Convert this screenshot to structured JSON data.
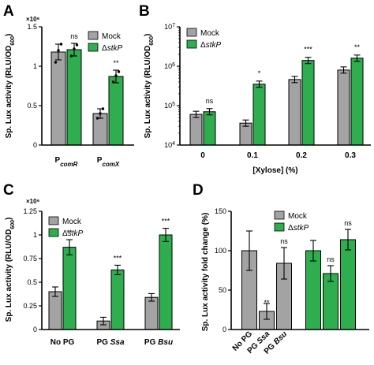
{
  "colors": {
    "mock": "#a3a3a3",
    "stkp": "#2fae4f"
  },
  "legend": {
    "mock": "Mock",
    "stkp": "ΔstkP",
    "stkp_tail": "stkP"
  },
  "chart_data": [
    {
      "panel": "A",
      "type": "bar",
      "ylabel": "Sp. Lux activity (RLU/OD600)",
      "y_multiplier": "×10⁶",
      "ylim": [
        0,
        1.5
      ],
      "yticks": [
        "0",
        "0.5",
        "1",
        "1.5"
      ],
      "categories": [
        {
          "main": "P",
          "sub": "comR"
        },
        {
          "main": "P",
          "sub": "comX"
        }
      ],
      "series": [
        {
          "name": "Mock",
          "values": [
            1.18,
            0.4
          ],
          "errors": [
            0.1,
            0.06
          ],
          "points": [
            [
              1.05,
              1.2,
              1.28
            ],
            [
              0.34,
              0.4,
              0.46
            ]
          ]
        },
        {
          "name": "ΔstkP",
          "values": [
            1.21,
            0.87
          ],
          "errors": [
            0.08,
            0.08
          ],
          "points": [
            [
              1.13,
              1.22,
              1.27
            ],
            [
              0.8,
              0.88,
              0.93
            ]
          ]
        }
      ],
      "significance": [
        "ns",
        "**"
      ],
      "legend_position": "top-right"
    },
    {
      "panel": "B",
      "type": "bar",
      "scale": "log",
      "ylabel": "Sp. Lux activity (RLU/OD600)",
      "xlabel": "[Xylose] (%)",
      "ylim": [
        10000,
        10000000
      ],
      "yticks": [
        {
          "base": "10",
          "exp": "4"
        },
        {
          "base": "10",
          "exp": "5"
        },
        {
          "base": "10",
          "exp": "6"
        },
        {
          "base": "10",
          "exp": "7"
        }
      ],
      "categories": [
        "0",
        "0.1",
        "0.2",
        "0.3"
      ],
      "series": [
        {
          "name": "Mock",
          "values": [
            60000,
            36000,
            460000,
            800000
          ]
        },
        {
          "name": "ΔstkP",
          "values": [
            70000,
            350000,
            1400000,
            1600000
          ]
        }
      ],
      "significance": [
        "ns",
        "*",
        "***",
        "**"
      ],
      "legend_position": "top-left"
    },
    {
      "panel": "C",
      "type": "bar",
      "ylabel": "Sp. Lux activity (RLU/OD600)",
      "y_multiplier": "×10⁶",
      "ylim": [
        0,
        1.25
      ],
      "yticks": [
        "0",
        "0.25",
        "0.5",
        "0.75",
        "1",
        "1.25"
      ],
      "categories": [
        {
          "main": "No PG",
          "italic": ""
        },
        {
          "main": "PG ",
          "italic": "Ssa"
        },
        {
          "main": "PG ",
          "italic": "Bsu"
        }
      ],
      "series": [
        {
          "name": "Mock",
          "values": [
            0.4,
            0.09,
            0.34
          ],
          "errors": [
            0.05,
            0.04,
            0.04
          ]
        },
        {
          "name": "ΔstkP",
          "values": [
            0.87,
            0.63,
            1.0
          ],
          "errors": [
            0.08,
            0.05,
            0.07
          ]
        }
      ],
      "significance": [
        "**",
        "***",
        "***"
      ],
      "legend_position": "top-left"
    },
    {
      "panel": "D",
      "type": "bar",
      "ylabel": "Sp. Lux activity fold change (%)",
      "ylim": [
        0,
        150
      ],
      "yticks": [
        "0",
        "50",
        "100",
        "150"
      ],
      "categories": [
        {
          "main": "No PG",
          "italic": ""
        },
        {
          "main": "PG ",
          "italic": "Ssa"
        },
        {
          "main": "PG ",
          "italic": "Bsu"
        }
      ],
      "series": [
        {
          "name": "Mock",
          "values": [
            100,
            23,
            84
          ],
          "errors": [
            25,
            10,
            20
          ],
          "significance": [
            "",
            "**",
            "ns"
          ]
        },
        {
          "name": "ΔstkP",
          "values": [
            100,
            71,
            114
          ],
          "errors": [
            13,
            10,
            13
          ],
          "significance": [
            "",
            "ns",
            "ns"
          ]
        }
      ],
      "legend_position": "top-center"
    }
  ]
}
